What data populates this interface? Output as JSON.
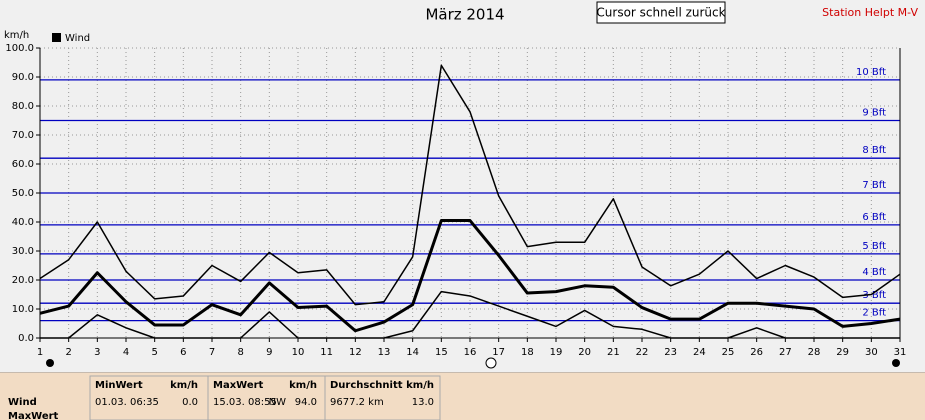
{
  "chart_data": {
    "type": "line",
    "title": "März 2014",
    "y_unit": "km/h",
    "categories": [
      "1",
      "2",
      "3",
      "4",
      "5",
      "6",
      "7",
      "8",
      "9",
      "10",
      "11",
      "12",
      "13",
      "14",
      "15",
      "16",
      "17",
      "18",
      "19",
      "20",
      "21",
      "22",
      "23",
      "24",
      "25",
      "26",
      "27",
      "28",
      "29",
      "30",
      "31"
    ],
    "series": [
      {
        "name": "Wind",
        "color": "#000000",
        "width": 3,
        "values": [
          8.5,
          11,
          22.5,
          12.5,
          4.5,
          4.5,
          11.5,
          8,
          19,
          10.5,
          11,
          2.5,
          5.5,
          11.5,
          40.5,
          40.5,
          28.5,
          15.5,
          16,
          18,
          17.5,
          10.5,
          6.5,
          6.5,
          12,
          12,
          11,
          10,
          4,
          5,
          6.5
        ]
      },
      {
        "color": "#000000",
        "width": 1.5,
        "values": [
          20.5,
          27,
          40,
          23,
          13.5,
          14.5,
          25,
          19.5,
          29.5,
          22.5,
          23.5,
          11.5,
          12.5,
          28,
          94,
          78,
          49,
          31.5,
          33,
          33,
          48,
          24.5,
          18,
          22,
          30,
          20.5,
          25,
          21,
          14,
          15,
          22
        ]
      },
      {
        "color": "#000000",
        "width": 1.5,
        "values": [
          0,
          0,
          8,
          3.5,
          0,
          0,
          0,
          0,
          9,
          0,
          0,
          0,
          0,
          2.5,
          16,
          14.5,
          11,
          7.5,
          4,
          9.5,
          4,
          3,
          0,
          0,
          0,
          3.5,
          0,
          0,
          0,
          0,
          0
        ]
      }
    ],
    "ylim": [
      0,
      100
    ],
    "yticks": [
      {
        "value": 0,
        "label": "0.0"
      },
      {
        "value": 10,
        "label": "10.0"
      },
      {
        "value": 20,
        "label": "20.0"
      },
      {
        "value": 30,
        "label": "30.0"
      },
      {
        "value": 40,
        "label": "40.0"
      },
      {
        "value": 50,
        "label": "50.0"
      },
      {
        "value": 60,
        "label": "60.0"
      },
      {
        "value": 70,
        "label": "70.0"
      },
      {
        "value": 80,
        "label": "80.0"
      },
      {
        "value": 90,
        "label": "90.0"
      },
      {
        "value": 100,
        "label": "100.0"
      }
    ],
    "grid": true,
    "reference_color": "#0000c0",
    "reference_lines": [
      {
        "value": 6,
        "label": "2 Bft"
      },
      {
        "value": 12,
        "label": "3 Bft"
      },
      {
        "value": 20,
        "label": "4 Bft"
      },
      {
        "value": 29,
        "label": "5 Bft"
      },
      {
        "value": 39,
        "label": "6 Bft"
      },
      {
        "value": 50,
        "label": "7 Bft"
      },
      {
        "value": 62,
        "label": "8 Bft"
      },
      {
        "value": 75,
        "label": "9 Bft"
      },
      {
        "value": 89,
        "label": "10 Bft"
      }
    ]
  },
  "button": "Cursor schnell zurück",
  "station": "Station Helpt M-V",
  "summary": {
    "row_labels": [
      "Wind",
      "MaxWert"
    ],
    "min": {
      "title": "MinWert",
      "unit": "km/h",
      "time": "01.03.  06:35",
      "value": "0.0"
    },
    "max": {
      "title": "MaxWert",
      "unit": "km/h",
      "time": "15.03.  08:55",
      "direction": "NW",
      "value": "94.0"
    },
    "avg": {
      "title": "Durchschnitt",
      "unit": "km/h",
      "distance": "9677.2 km",
      "value": "13.0"
    }
  }
}
